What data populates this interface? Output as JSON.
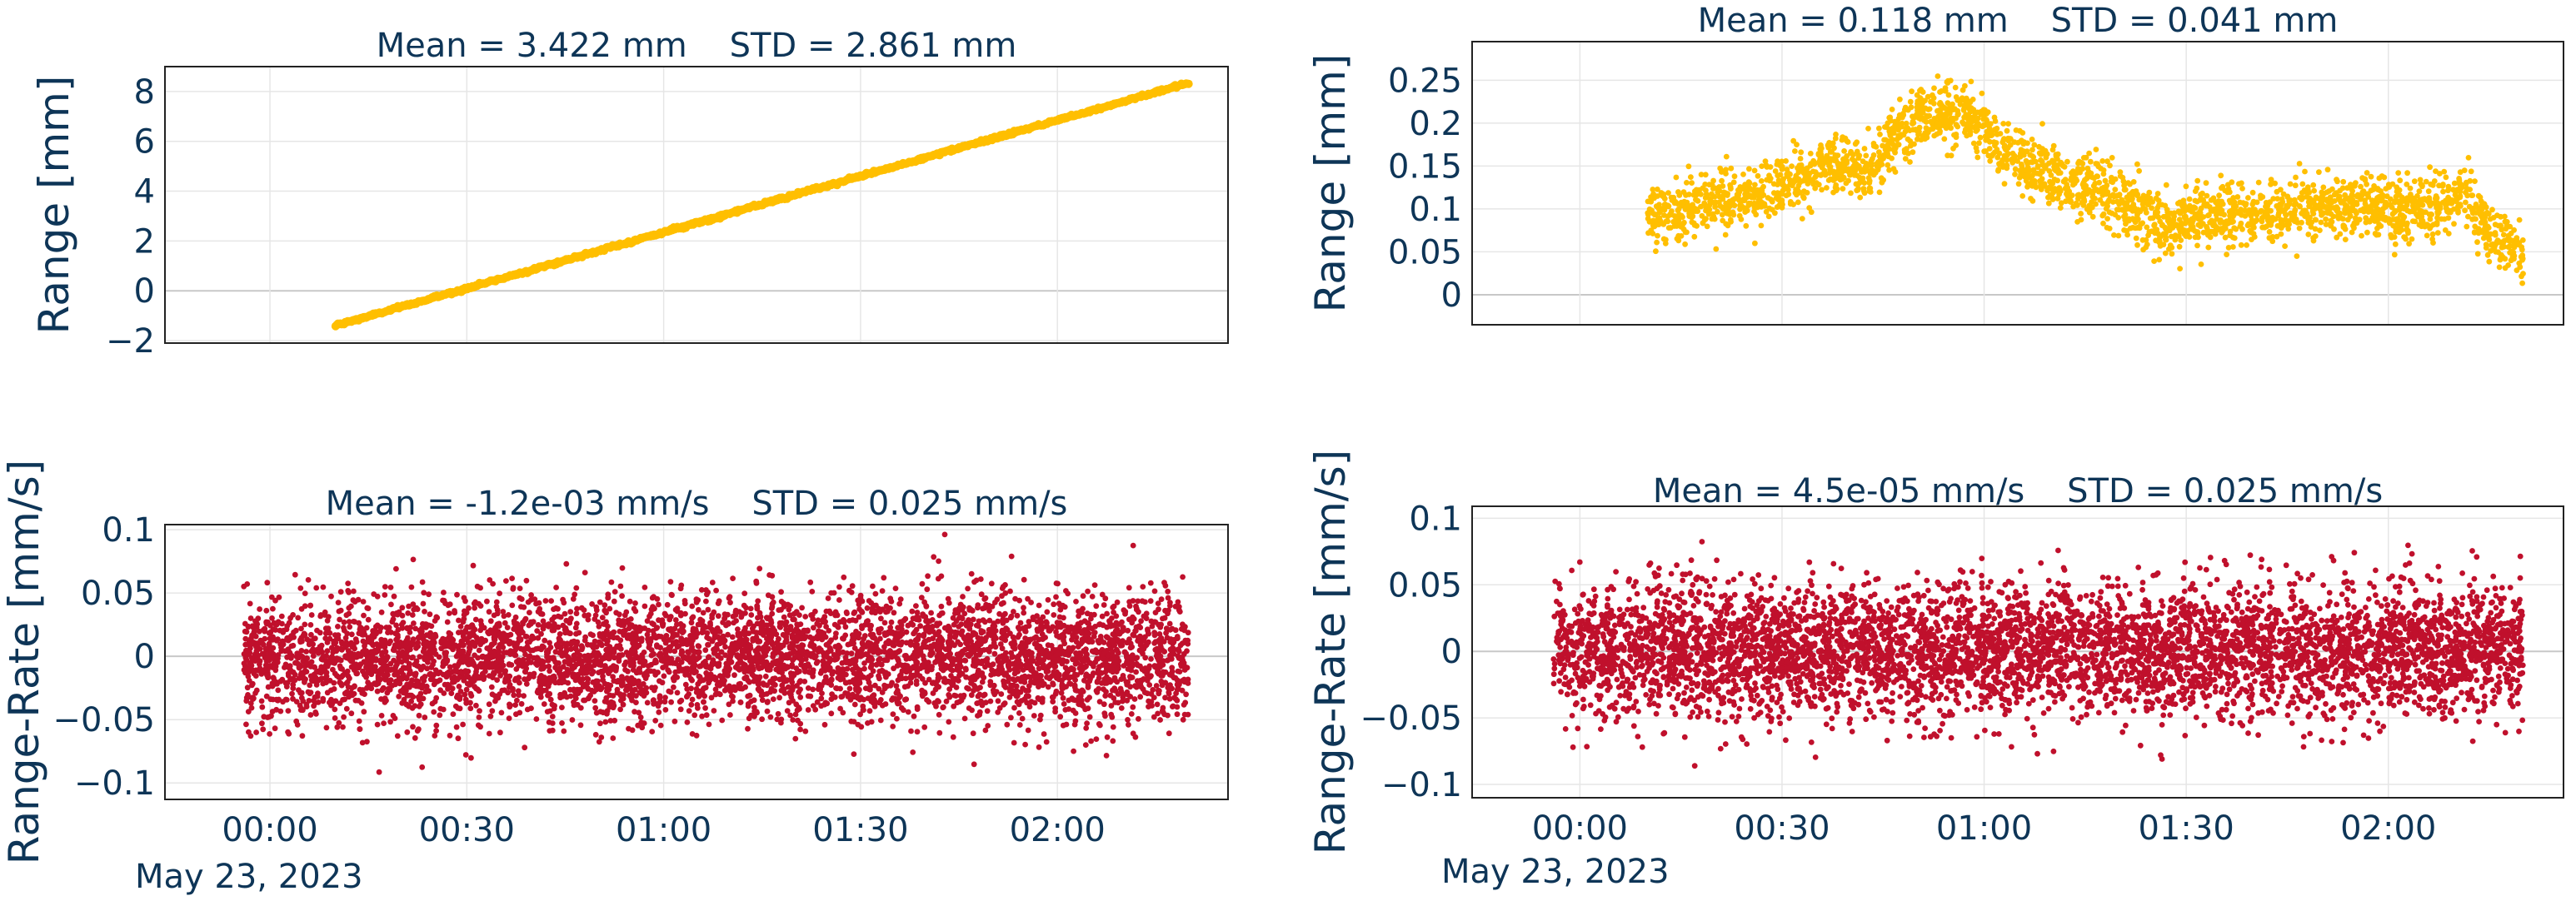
{
  "chart_data": [
    {
      "id": "range_left",
      "type": "scatter",
      "title": "Mean = 3.422 mm    STD = 2.861 mm",
      "ylabel": "Range [mm]",
      "xlabel": "",
      "ylim": [
        -2.1,
        9.0
      ],
      "xlim_minutes": [
        -16,
        146
      ],
      "yticks": [
        -2,
        0,
        2,
        4,
        6,
        8
      ],
      "yticklabels": [
        "−2",
        "0",
        "2",
        "4",
        "6",
        "8"
      ],
      "xticks_minutes": [
        0,
        30,
        60,
        90,
        120
      ],
      "xticklabels": [],
      "date_label": "",
      "color": "#ffbf00",
      "series": {
        "kind": "linear",
        "x_start_min": 10,
        "x_end_min": 140,
        "y_start": -1.4,
        "y_end": 8.35,
        "n": 700,
        "noise": 0.03
      }
    },
    {
      "id": "range_right",
      "type": "scatter",
      "title": "Mean = 0.118 mm    STD = 0.041 mm",
      "ylabel": "Range [mm]",
      "xlabel": "",
      "ylim": [
        -0.035,
        0.295
      ],
      "xlim_minutes": [
        -16,
        146
      ],
      "yticks": [
        0,
        0.05,
        0.1,
        0.15,
        0.2,
        0.25
      ],
      "yticklabels": [
        "0",
        "0.05",
        "0.1",
        "0.15",
        "0.2",
        "0.25"
      ],
      "xticks_minutes": [
        0,
        30,
        60,
        90,
        120
      ],
      "xticklabels": [],
      "date_label": "",
      "color": "#ffbf00",
      "series": {
        "kind": "trend",
        "x_start_min": 10,
        "x_end_min": 140,
        "n": 2600,
        "noise": 0.018,
        "trend_x_min": [
          10,
          20,
          30,
          37,
          43,
          47,
          52,
          58,
          66,
          72,
          80,
          86,
          95,
          105,
          115,
          125,
          131,
          135,
          140
        ],
        "trend_y": [
          0.09,
          0.11,
          0.125,
          0.15,
          0.14,
          0.185,
          0.215,
          0.205,
          0.155,
          0.13,
          0.115,
          0.08,
          0.095,
          0.095,
          0.105,
          0.1,
          0.115,
          0.07,
          0.055
        ]
      }
    },
    {
      "id": "rate_left",
      "type": "scatter",
      "title": "Mean = -1.2e-03 mm/s    STD = 0.025 mm/s",
      "ylabel": "Range-Rate [mm/s]",
      "xlabel": "",
      "ylim": [
        -0.113,
        0.104
      ],
      "xlim_minutes": [
        -16,
        146
      ],
      "yticks": [
        -0.1,
        -0.05,
        0,
        0.05,
        0.1
      ],
      "yticklabels": [
        "−0.1",
        "−0.05",
        "0",
        "0.05",
        "0.1"
      ],
      "xticks_minutes": [
        0,
        30,
        60,
        90,
        120
      ],
      "xticklabels": [
        "00:00",
        "00:30",
        "01:00",
        "01:30",
        "02:00"
      ],
      "date_label": "May 23, 2023",
      "color": "#c0102c",
      "series": {
        "kind": "noise",
        "x_start_min": -4,
        "x_end_min": 140,
        "n": 5200,
        "mean": -0.0012,
        "std": 0.025
      }
    },
    {
      "id": "rate_right",
      "type": "scatter",
      "title": "Mean = 4.5e-05 mm/s    STD = 0.025 mm/s",
      "ylabel": "Range-Rate [mm/s]",
      "xlabel": "",
      "ylim": [
        -0.11,
        0.109
      ],
      "xlim_minutes": [
        -16,
        146
      ],
      "yticks": [
        -0.1,
        -0.05,
        0,
        0.05,
        0.1
      ],
      "yticklabels": [
        "−0.1",
        "−0.05",
        "0",
        "0.05",
        "0.1"
      ],
      "xticks_minutes": [
        0,
        30,
        60,
        90,
        120
      ],
      "xticklabels": [
        "00:00",
        "00:30",
        "01:00",
        "01:30",
        "02:00"
      ],
      "date_label": "May 23, 2023",
      "color": "#c0102c",
      "series": {
        "kind": "noise",
        "x_start_min": -4,
        "x_end_min": 140,
        "n": 5200,
        "mean": 4.5e-05,
        "std": 0.025
      }
    }
  ]
}
